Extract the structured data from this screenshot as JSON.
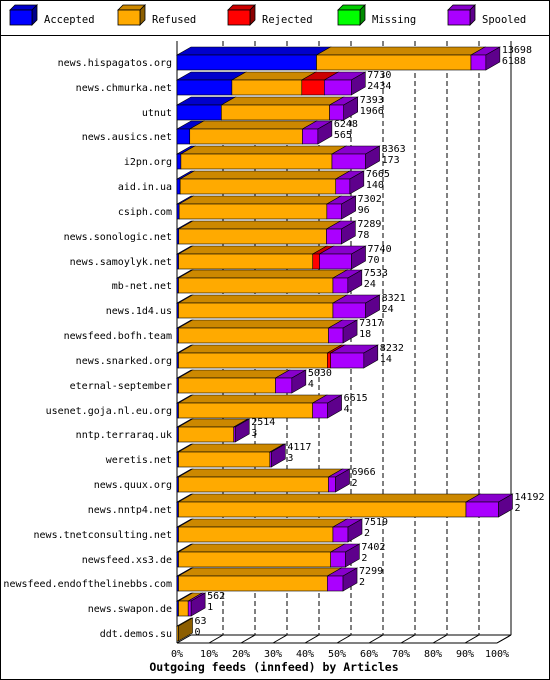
{
  "chart_data": {
    "type": "bar",
    "orientation": "horizontal",
    "stacked": true,
    "title": "Outgoing feeds (innfeed) by Articles",
    "legend": [
      {
        "name": "Accepted",
        "color": "#0000ff"
      },
      {
        "name": "Refused",
        "color": "#ffaa00"
      },
      {
        "name": "Rejected",
        "color": "#ff0000"
      },
      {
        "name": "Missing",
        "color": "#00ff00"
      },
      {
        "name": "Spooled",
        "color": "#aa00ff"
      }
    ],
    "legend_position": "top",
    "x_ticks": [
      "0%",
      "10%",
      "20%",
      "30%",
      "40%",
      "50%",
      "60%",
      "70%",
      "80%",
      "90%",
      "100%"
    ],
    "xlim": [
      0,
      100
    ],
    "grid": true,
    "max_total": 14192,
    "rows": [
      {
        "label": "news.hispagatos.org",
        "total": "13698",
        "accepted_label": "6188",
        "accepted": 6188,
        "refused": 6850,
        "rejected": 0,
        "missing": 0,
        "spooled": 660
      },
      {
        "label": "news.chmurka.net",
        "total": "7730",
        "accepted_label": "2434",
        "accepted": 2434,
        "refused": 3100,
        "rejected": 1000,
        "missing": 0,
        "spooled": 1196
      },
      {
        "label": "utnut",
        "total": "7393",
        "accepted_label": "1966",
        "accepted": 1966,
        "refused": 4800,
        "rejected": 0,
        "missing": 0,
        "spooled": 627
      },
      {
        "label": "news.ausics.net",
        "total": "6248",
        "accepted_label": "565",
        "accepted": 565,
        "refused": 5000,
        "rejected": 0,
        "missing": 0,
        "spooled": 683
      },
      {
        "label": "i2pn.org",
        "total": "8363",
        "accepted_label": "173",
        "accepted": 173,
        "refused": 6700,
        "rejected": 0,
        "missing": 0,
        "spooled": 1490
      },
      {
        "label": "aid.in.ua",
        "total": "7665",
        "accepted_label": "140",
        "accepted": 140,
        "refused": 6900,
        "rejected": 0,
        "missing": 0,
        "spooled": 625
      },
      {
        "label": "csiph.com",
        "total": "7302",
        "accepted_label": "96",
        "accepted": 96,
        "refused": 6550,
        "rejected": 0,
        "missing": 0,
        "spooled": 656
      },
      {
        "label": "news.sonologic.net",
        "total": "7289",
        "accepted_label": "78",
        "accepted": 78,
        "refused": 6550,
        "rejected": 0,
        "missing": 0,
        "spooled": 661
      },
      {
        "label": "news.samoylyk.net",
        "total": "7740",
        "accepted_label": "70",
        "accepted": 70,
        "refused": 5950,
        "rejected": 300,
        "missing": 0,
        "spooled": 1420
      },
      {
        "label": "mb-net.net",
        "total": "7533",
        "accepted_label": "24",
        "accepted": 24,
        "refused": 6850,
        "rejected": 0,
        "missing": 0,
        "spooled": 659
      },
      {
        "label": "news.1d4.us",
        "total": "8321",
        "accepted_label": "24",
        "accepted": 24,
        "refused": 6850,
        "rejected": 0,
        "missing": 0,
        "spooled": 1447
      },
      {
        "label": "newsfeed.bofh.team",
        "total": "7317",
        "accepted_label": "18",
        "accepted": 18,
        "refused": 6650,
        "rejected": 0,
        "missing": 0,
        "spooled": 649
      },
      {
        "label": "news.snarked.org",
        "total": "8232",
        "accepted_label": "14",
        "accepted": 14,
        "refused": 6600,
        "rejected": 150,
        "missing": 0,
        "spooled": 1468
      },
      {
        "label": "eternal-september",
        "total": "5030",
        "accepted_label": "4",
        "accepted": 4,
        "refused": 4300,
        "rejected": 0,
        "missing": 0,
        "spooled": 726
      },
      {
        "label": "usenet.goja.nl.eu.org",
        "total": "6615",
        "accepted_label": "4",
        "accepted": 4,
        "refused": 5950,
        "rejected": 0,
        "missing": 0,
        "spooled": 661
      },
      {
        "label": "nntp.terraraq.uk",
        "total": "2514",
        "accepted_label": "3",
        "accepted": 3,
        "refused": 2450,
        "rejected": 0,
        "missing": 0,
        "spooled": 61
      },
      {
        "label": "weretis.net",
        "total": "4117",
        "accepted_label": "3",
        "accepted": 3,
        "refused": 4050,
        "rejected": 0,
        "missing": 0,
        "spooled": 64
      },
      {
        "label": "news.quux.org",
        "total": "6966",
        "accepted_label": "2",
        "accepted": 2,
        "refused": 6650,
        "rejected": 0,
        "missing": 0,
        "spooled": 314
      },
      {
        "label": "news.nntp4.net",
        "total": "14192",
        "accepted_label": "2",
        "accepted": 2,
        "refused": 12750,
        "rejected": 0,
        "missing": 0,
        "spooled": 1440
      },
      {
        "label": "news.tnetconsulting.net",
        "total": "7519",
        "accepted_label": "2",
        "accepted": 2,
        "refused": 6850,
        "rejected": 0,
        "missing": 0,
        "spooled": 667
      },
      {
        "label": "newsfeed.xs3.de",
        "total": "7402",
        "accepted_label": "2",
        "accepted": 2,
        "refused": 6750,
        "rejected": 0,
        "missing": 0,
        "spooled": 650
      },
      {
        "label": "newsfeed.endofthelinebbs.com",
        "total": "7299",
        "accepted_label": "2",
        "accepted": 2,
        "refused": 6600,
        "rejected": 0,
        "missing": 0,
        "spooled": 697
      },
      {
        "label": "news.swapon.de",
        "total": "562",
        "accepted_label": "1",
        "accepted": 1,
        "refused": 430,
        "rejected": 0,
        "missing": 0,
        "spooled": 131
      },
      {
        "label": "ddt.demos.su",
        "total": "63",
        "accepted_label": "0",
        "accepted": 0,
        "refused": 63,
        "rejected": 0,
        "missing": 0,
        "spooled": 0
      }
    ]
  }
}
